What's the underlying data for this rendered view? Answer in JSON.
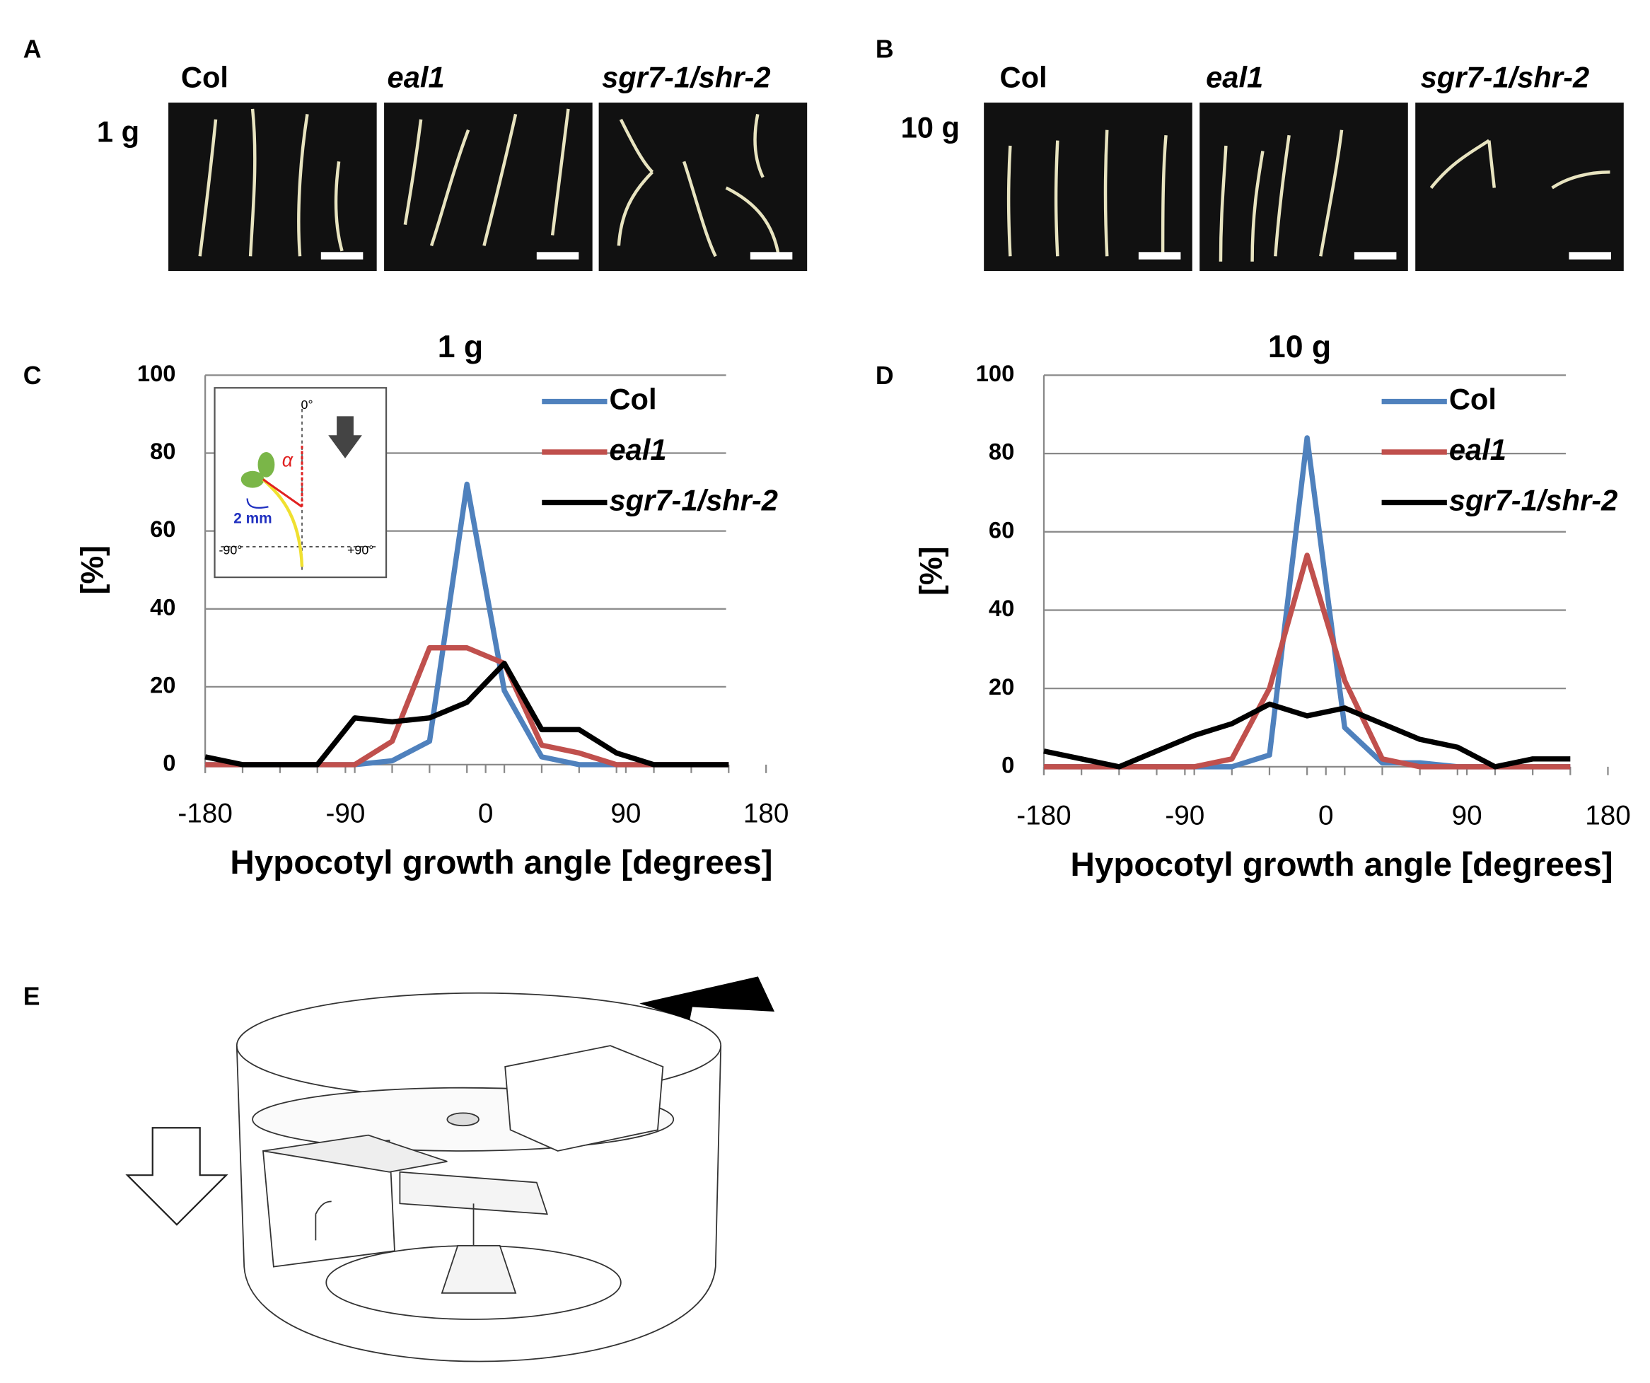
{
  "panels": {
    "labels": [
      "A",
      "B",
      "C",
      "D",
      "E"
    ],
    "photo_columns": [
      "Col",
      "eal1",
      "sgr7-1/shr-2"
    ],
    "photo_rows": [
      "1 g",
      "10 g"
    ],
    "inset": {
      "top": "0°",
      "angle": "α",
      "length": "2 mm",
      "left": "-90°",
      "right": "+90°"
    }
  },
  "chart_data": [
    {
      "type": "line",
      "title": "1 g",
      "xlabel": "Hypocotyl growth angle [degrees]",
      "ylabel": "[%]",
      "x": [
        -180,
        -156,
        -132,
        -108,
        -84,
        -60,
        -36,
        -12,
        12,
        36,
        60,
        84,
        108,
        132,
        156
      ],
      "series": [
        {
          "name": "Col",
          "color": "#4f81bd",
          "values": [
            0,
            0,
            0,
            0,
            0,
            1,
            6,
            72,
            19,
            2,
            0,
            0,
            0,
            0,
            0
          ]
        },
        {
          "name": "eal1",
          "color": "#c0504d",
          "values": [
            0,
            0,
            0,
            0,
            0,
            6,
            30,
            30,
            26,
            5,
            3,
            0,
            0,
            0,
            0
          ]
        },
        {
          "name": "sgr7-1/shr-2",
          "color": "#000000",
          "values": [
            2,
            0,
            0,
            0,
            12,
            11,
            12,
            16,
            26,
            9,
            9,
            3,
            0,
            0,
            0
          ]
        }
      ],
      "xlim": [
        -180,
        180
      ],
      "xticks": [
        -180,
        -90,
        0,
        90,
        180
      ],
      "ylim": [
        0,
        100
      ],
      "yticks": [
        0,
        20,
        40,
        60,
        80,
        100
      ],
      "grid": true,
      "legend": "upper right"
    },
    {
      "type": "line",
      "title": "10 g",
      "xlabel": "Hypocotyl growth angle [degrees]",
      "ylabel": "[%]",
      "x": [
        -180,
        -156,
        -132,
        -108,
        -84,
        -60,
        -36,
        -12,
        12,
        36,
        60,
        84,
        108,
        132,
        156
      ],
      "series": [
        {
          "name": "Col",
          "color": "#4f81bd",
          "values": [
            0,
            0,
            0,
            0,
            0,
            0,
            3,
            84,
            10,
            1,
            1,
            0,
            0,
            0,
            0
          ]
        },
        {
          "name": "eal1",
          "color": "#c0504d",
          "values": [
            0,
            0,
            0,
            0,
            0,
            2,
            20,
            54,
            22,
            2,
            0,
            0,
            0,
            0,
            0
          ]
        },
        {
          "name": "sgr7-1/shr-2",
          "color": "#000000",
          "values": [
            4,
            2,
            0,
            4,
            8,
            11,
            16,
            13,
            15,
            11,
            7,
            5,
            0,
            2,
            2
          ]
        }
      ],
      "xlim": [
        -180,
        180
      ],
      "xticks": [
        -180,
        -90,
        0,
        90,
        180
      ],
      "ylim": [
        0,
        100
      ],
      "yticks": [
        0,
        20,
        40,
        60,
        80,
        100
      ],
      "grid": true,
      "legend": "upper right"
    }
  ]
}
